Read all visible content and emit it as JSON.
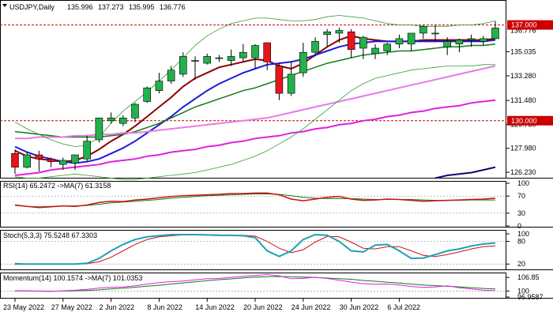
{
  "main": {
    "info": {
      "symbol": "USDJPY",
      "timeframe": "Daily",
      "ohlc": [
        "135.996",
        "137.273",
        "135.995",
        "136.776"
      ]
    },
    "price_ticks": [
      "135.035",
      "133.280",
      "131.480",
      "129.730",
      "127.980",
      "126.230"
    ],
    "partial_tick": "136.776",
    "hlines": [
      {
        "value": 137.0,
        "label": "137.000",
        "color": "#cc0000"
      },
      {
        "value": 130.0,
        "label": "130.000",
        "color": "#cc0000"
      }
    ]
  },
  "rsi": {
    "title": "RSI(14) 65.2472  ->MA(7) 61.3158",
    "ticks": [
      "100",
      "70",
      "30",
      "0"
    ],
    "values": [
      49,
      46,
      43,
      45,
      47,
      46,
      49,
      55,
      58,
      57,
      61,
      63,
      66,
      69,
      71,
      72,
      73,
      74,
      76,
      76,
      77,
      77,
      73,
      63,
      59,
      63,
      67,
      69,
      63,
      60,
      61,
      63,
      62,
      60,
      58,
      59,
      60,
      61,
      62,
      63,
      65
    ],
    "ma": [
      48,
      46,
      45,
      46,
      47,
      47,
      48,
      51,
      54,
      56,
      58,
      60,
      62,
      65,
      67,
      69,
      71,
      72,
      73,
      74,
      75,
      75,
      74,
      71,
      67,
      65,
      64,
      64,
      64,
      63,
      62,
      62,
      62,
      62,
      61,
      60,
      60,
      60,
      61,
      61,
      61
    ]
  },
  "stoch": {
    "title": "Stoch(5,3,3) 75.5248 67.3303",
    "ticks": [
      "100",
      "80",
      "20"
    ],
    "main": [
      20,
      20,
      20,
      20,
      20,
      20,
      22,
      35,
      55,
      72,
      85,
      92,
      95,
      98,
      98,
      98,
      97,
      96,
      96,
      95,
      90,
      55,
      40,
      55,
      85,
      98,
      96,
      80,
      55,
      52,
      70,
      72,
      55,
      35,
      36,
      45,
      55,
      60,
      68,
      73,
      76
    ],
    "signal": [
      22,
      20,
      20,
      20,
      20,
      20,
      21,
      26,
      38,
      55,
      72,
      85,
      92,
      95,
      97,
      98,
      98,
      97,
      96,
      96,
      94,
      80,
      62,
      50,
      58,
      78,
      93,
      92,
      78,
      62,
      60,
      66,
      66,
      55,
      43,
      40,
      45,
      52,
      60,
      66,
      68
    ]
  },
  "momentum": {
    "title": "Momentum(14) 100.1574  ->MA(7) 101.0353",
    "ticks": [
      "106.85",
      "100",
      "96.9587"
    ],
    "values": [
      100.0,
      100.1,
      99.9,
      99.8,
      100.1,
      100.4,
      100.8,
      101.5,
      101.9,
      102.0,
      102.6,
      103.5,
      104.2,
      104.7,
      105.0,
      105.6,
      106.2,
      106.3,
      106.9,
      107.4,
      107.8,
      108.3,
      107.6,
      106.2,
      106.4,
      106.9,
      106.3,
      105.4,
      104.5,
      103.7,
      103.4,
      103.5,
      103.1,
      102.3,
      101.8,
      102.0,
      102.6,
      101.6,
      101.0,
      100.4,
      100.2
    ],
    "ma": [
      100.1,
      100.0,
      100.0,
      99.9,
      100.0,
      100.1,
      100.3,
      100.6,
      101.0,
      101.4,
      101.9,
      102.4,
      102.9,
      103.5,
      104.1,
      104.6,
      105.2,
      105.7,
      106.1,
      106.6,
      107.0,
      107.2,
      107.3,
      107.2,
      107.0,
      106.8,
      106.5,
      106.2,
      105.9,
      105.3,
      104.9,
      104.4,
      104.0,
      103.5,
      103.0,
      102.7,
      102.4,
      102.1,
      101.7,
      101.3,
      101.0
    ]
  },
  "x_labels": [
    "23 May 2022",
    "27 May 2022",
    "2 Jun 2022",
    "8 Jun 2022",
    "14 Jun 2022",
    "20 Jun 2022",
    "24 Jun 2022",
    "30 Jun 2022",
    "6 Jul 2022"
  ],
  "x_label_candle_index": [
    0,
    4,
    8,
    12,
    16,
    20,
    24,
    28,
    32
  ],
  "colors": {
    "bull": "#22b14c",
    "bear": "#e8141c",
    "ma_red": "#8b0000",
    "ma_blue": "#1a1adb",
    "ma_green": "#147a14",
    "ma_pink": "#e87ae8",
    "ma_magenta": "#e020e0",
    "ma_navy": "#0a0a6e",
    "bollinger": "#30a030"
  },
  "chart_data": {
    "type": "candlestick",
    "symbol": "USDJPY",
    "timeframe": "Daily",
    "ylim": [
      126.0,
      137.9
    ],
    "x": [
      "23 May 2022",
      "27 May 2022",
      "2 Jun 2022",
      "8 Jun 2022",
      "14 Jun 2022",
      "20 Jun 2022",
      "24 Jun 2022",
      "30 Jun 2022",
      "6 Jul 2022"
    ],
    "candles": [
      {
        "o": 127.6,
        "h": 127.9,
        "l": 126.1,
        "c": 126.6
      },
      {
        "o": 126.6,
        "h": 127.7,
        "l": 126.5,
        "c": 127.5
      },
      {
        "o": 127.5,
        "h": 127.8,
        "l": 126.3,
        "c": 127.2
      },
      {
        "o": 127.2,
        "h": 127.3,
        "l": 126.6,
        "c": 127.0
      },
      {
        "o": 126.8,
        "h": 127.3,
        "l": 126.4,
        "c": 127.1
      },
      {
        "o": 126.9,
        "h": 127.5,
        "l": 126.4,
        "c": 127.5
      },
      {
        "o": 127.2,
        "h": 128.9,
        "l": 127.0,
        "c": 128.5
      },
      {
        "o": 128.6,
        "h": 130.2,
        "l": 128.4,
        "c": 130.2
      },
      {
        "o": 130.0,
        "h": 130.6,
        "l": 129.8,
        "c": 130.2
      },
      {
        "o": 129.8,
        "h": 130.4,
        "l": 129.6,
        "c": 130.2
      },
      {
        "o": 130.2,
        "h": 131.3,
        "l": 129.9,
        "c": 131.2
      },
      {
        "o": 131.4,
        "h": 132.5,
        "l": 131.3,
        "c": 132.4
      },
      {
        "o": 132.2,
        "h": 133.5,
        "l": 132.0,
        "c": 132.9
      },
      {
        "o": 132.9,
        "h": 134.0,
        "l": 132.7,
        "c": 133.7
      },
      {
        "o": 133.4,
        "h": 135.0,
        "l": 133.2,
        "c": 134.7
      },
      {
        "o": 134.4,
        "h": 134.7,
        "l": 133.0,
        "c": 134.4
      },
      {
        "o": 134.2,
        "h": 134.9,
        "l": 134.1,
        "c": 134.7
      },
      {
        "o": 134.6,
        "h": 134.8,
        "l": 134.3,
        "c": 134.6
      },
      {
        "o": 134.4,
        "h": 135.2,
        "l": 134.0,
        "c": 134.7
      },
      {
        "o": 134.6,
        "h": 135.6,
        "l": 134.3,
        "c": 135.0
      },
      {
        "o": 134.6,
        "h": 135.6,
        "l": 133.8,
        "c": 135.5
      },
      {
        "o": 135.7,
        "h": 135.7,
        "l": 133.7,
        "c": 134.3
      },
      {
        "o": 134.0,
        "h": 134.2,
        "l": 131.5,
        "c": 132.0
      },
      {
        "o": 132.0,
        "h": 134.3,
        "l": 131.8,
        "c": 133.4
      },
      {
        "o": 133.5,
        "h": 135.7,
        "l": 133.2,
        "c": 135.0
      },
      {
        "o": 135.0,
        "h": 136.1,
        "l": 134.7,
        "c": 135.8
      },
      {
        "o": 136.3,
        "h": 136.7,
        "l": 135.4,
        "c": 136.5
      },
      {
        "o": 136.4,
        "h": 136.8,
        "l": 135.7,
        "c": 136.6
      },
      {
        "o": 136.5,
        "h": 136.7,
        "l": 134.6,
        "c": 135.2
      },
      {
        "o": 135.3,
        "h": 136.2,
        "l": 134.5,
        "c": 136.1
      },
      {
        "o": 134.9,
        "h": 135.6,
        "l": 134.5,
        "c": 135.3
      },
      {
        "o": 135.1,
        "h": 135.7,
        "l": 134.8,
        "c": 135.6
      },
      {
        "o": 135.6,
        "h": 136.3,
        "l": 135.3,
        "c": 136.0
      },
      {
        "o": 135.6,
        "h": 136.4,
        "l": 135.1,
        "c": 136.4
      },
      {
        "o": 136.4,
        "h": 137.0,
        "l": 136.0,
        "c": 136.9
      },
      {
        "o": 136.4,
        "h": 137.0,
        "l": 135.8,
        "c": 136.4
      },
      {
        "o": 135.4,
        "h": 136.1,
        "l": 134.8,
        "c": 135.8
      },
      {
        "o": 135.6,
        "h": 136.0,
        "l": 135.0,
        "c": 135.9
      },
      {
        "o": 135.9,
        "h": 136.3,
        "l": 135.4,
        "c": 136.0
      },
      {
        "o": 135.8,
        "h": 136.2,
        "l": 135.5,
        "c": 136.0
      },
      {
        "o": 135.996,
        "h": 137.273,
        "l": 135.995,
        "c": 136.776
      }
    ],
    "overlays": [
      {
        "role": "ma-red",
        "values": [
          127.8,
          127.4,
          127.2,
          127.1,
          127.0,
          127.1,
          127.4,
          127.9,
          128.5,
          129.0,
          129.6,
          130.3,
          131.0,
          131.7,
          132.5,
          133.1,
          133.5,
          133.9,
          134.1,
          134.3,
          134.5,
          134.4,
          134.0,
          133.8,
          134.2,
          134.8,
          135.4,
          135.9,
          136.2,
          136.0,
          135.9,
          135.8,
          135.8,
          135.8,
          135.9,
          135.9,
          135.9,
          135.9,
          135.9,
          135.9,
          136.0
        ]
      },
      {
        "role": "ma-blue",
        "values": [
          128.1,
          127.7,
          127.4,
          127.2,
          127.0,
          126.9,
          127.0,
          127.2,
          127.6,
          128.0,
          128.5,
          129.1,
          129.7,
          130.3,
          131.0,
          131.6,
          132.2,
          132.7,
          133.1,
          133.5,
          133.8,
          134.1,
          134.2,
          134.3,
          134.5,
          134.8,
          135.1,
          135.4,
          135.6,
          135.7,
          135.8,
          135.8,
          135.8,
          135.8,
          135.8,
          135.8,
          135.8,
          135.8,
          135.8,
          135.8,
          135.9
        ]
      },
      {
        "role": "ma-green",
        "values": [
          129.2,
          129.1,
          129.0,
          128.9,
          128.8,
          128.8,
          128.8,
          128.8,
          128.9,
          129.0,
          129.2,
          129.5,
          129.8,
          130.2,
          130.6,
          131.0,
          131.3,
          131.6,
          131.9,
          132.2,
          132.4,
          132.7,
          133.0,
          133.3,
          133.6,
          133.9,
          134.2,
          134.4,
          134.6,
          134.8,
          134.9,
          135.0,
          135.1,
          135.1,
          135.2,
          135.3,
          135.4,
          135.4,
          135.5,
          135.5,
          135.6
        ]
      },
      {
        "role": "ma-pink",
        "values": [
          128.7,
          128.7,
          128.8,
          128.8,
          128.8,
          128.9,
          128.9,
          129.0,
          129.0,
          129.1,
          129.1,
          129.2,
          129.3,
          129.4,
          129.5,
          129.6,
          129.7,
          129.8,
          129.9,
          130.0,
          130.1,
          130.2,
          130.4,
          130.6,
          130.8,
          131.0,
          131.2,
          131.4,
          131.6,
          131.8,
          132.0,
          132.2,
          132.4,
          132.6,
          132.8,
          133.0,
          133.2,
          133.4,
          133.6,
          133.8,
          134.0
        ]
      },
      {
        "role": "ma-magenta",
        "values": [
          126.0,
          126.1,
          126.2,
          126.4,
          126.5,
          126.6,
          126.7,
          126.8,
          127.0,
          127.1,
          127.2,
          127.4,
          127.5,
          127.7,
          127.8,
          127.9,
          128.1,
          128.2,
          128.4,
          128.5,
          128.7,
          128.8,
          128.9,
          129.1,
          129.2,
          129.4,
          129.5,
          129.7,
          129.8,
          130.0,
          130.1,
          130.3,
          130.4,
          130.6,
          130.7,
          130.9,
          131.0,
          131.1,
          131.3,
          131.4,
          131.5
        ]
      },
      {
        "role": "ma-navy",
        "values": [
          null,
          null,
          null,
          null,
          null,
          null,
          null,
          null,
          null,
          null,
          null,
          null,
          null,
          null,
          null,
          null,
          null,
          null,
          null,
          null,
          null,
          null,
          null,
          null,
          null,
          null,
          null,
          null,
          null,
          null,
          null,
          null,
          null,
          null,
          null,
          125.8,
          126.0,
          126.1,
          126.2,
          126.4,
          126.6
        ]
      },
      {
        "role": "bollinger-upper",
        "values": [
          129.9,
          129.4,
          129.0,
          128.6,
          128.3,
          128.1,
          128.2,
          128.8,
          129.8,
          130.7,
          131.4,
          132.1,
          132.9,
          133.7,
          134.6,
          135.5,
          136.2,
          136.7,
          137.1,
          137.3,
          137.5,
          137.5,
          137.4,
          137.3,
          137.3,
          137.4,
          137.6,
          137.7,
          137.6,
          137.5,
          137.3,
          137.1,
          137.0,
          137.0,
          136.9,
          136.9,
          136.9,
          137.0,
          137.0,
          137.1,
          137.3
        ]
      },
      {
        "role": "bollinger-lower",
        "values": [
          125.9,
          125.8,
          125.8,
          125.9,
          126.0,
          126.1,
          126.0,
          125.9,
          125.8,
          125.7,
          125.7,
          125.8,
          125.9,
          126.0,
          126.1,
          126.2,
          126.4,
          126.6,
          126.8,
          127.1,
          127.4,
          127.8,
          128.3,
          128.8,
          129.4,
          130.1,
          130.8,
          131.5,
          132.2,
          132.7,
          133.1,
          133.3,
          133.5,
          133.7,
          133.8,
          133.9,
          134.0,
          134.0,
          134.0,
          134.1,
          134.1
        ]
      }
    ],
    "hlines": [
      137.0,
      130.0
    ]
  }
}
